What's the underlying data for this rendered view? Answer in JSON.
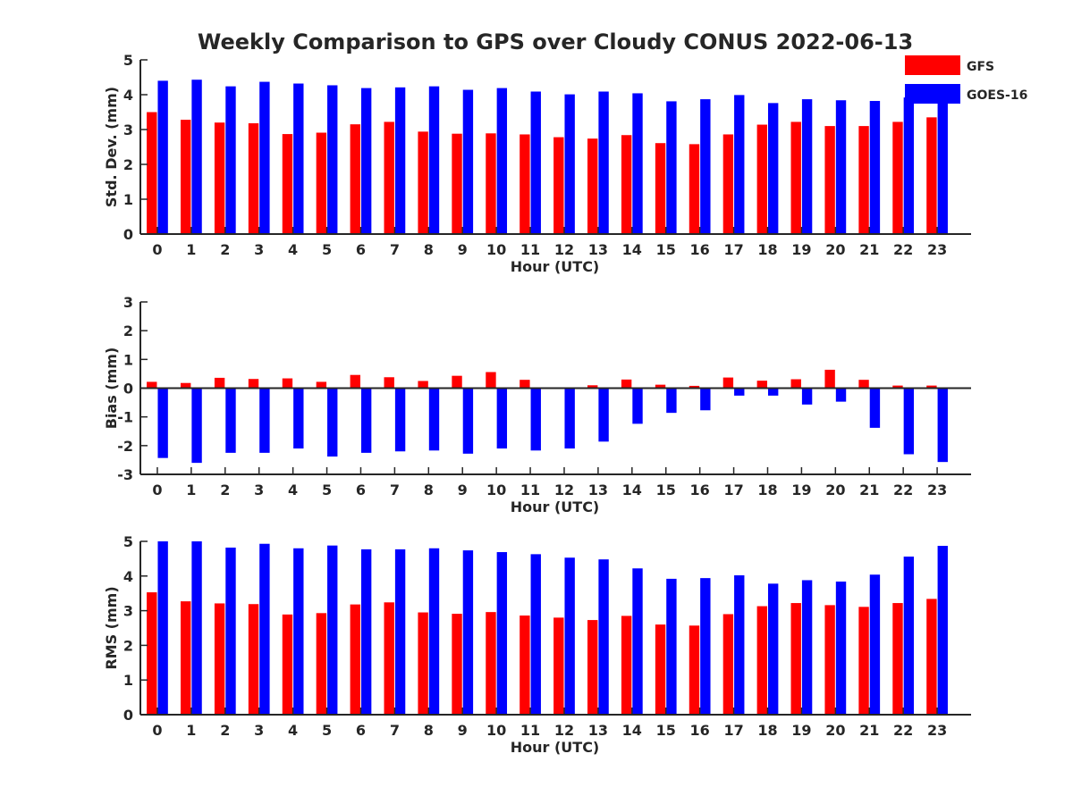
{
  "title": "Weekly Comparison to GPS over Cloudy CONUS 2022-06-13",
  "colors": {
    "gfs": "#ff0000",
    "goes": "#0000ff",
    "axis": "#262626",
    "background": "#ffffff"
  },
  "legend": {
    "placement": "top-right",
    "entries": [
      {
        "name": "GFS",
        "color": "#ff0000"
      },
      {
        "name": "GOES-16",
        "color": "#0000ff"
      }
    ]
  },
  "chart_data": [
    {
      "type": "bar",
      "ylabel": "Std. Dev. (mm)",
      "xlabel": "Hour (UTC)",
      "ylim": [
        0,
        5
      ],
      "yticks": [
        "0",
        "1",
        "2",
        "3",
        "4",
        "5"
      ],
      "categories": [
        "0",
        "1",
        "2",
        "3",
        "4",
        "5",
        "6",
        "7",
        "8",
        "9",
        "10",
        "11",
        "12",
        "13",
        "14",
        "15",
        "16",
        "17",
        "18",
        "19",
        "20",
        "21",
        "22",
        "23"
      ],
      "series": [
        {
          "name": "GFS",
          "values": [
            3.5,
            3.28,
            3.2,
            3.18,
            2.87,
            2.91,
            3.15,
            3.22,
            2.94,
            2.88,
            2.89,
            2.86,
            2.78,
            2.74,
            2.84,
            2.61,
            2.58,
            2.86,
            3.14,
            3.22,
            3.1,
            3.1,
            3.22,
            3.35
          ]
        },
        {
          "name": "GOES-16",
          "values": [
            4.4,
            4.43,
            4.24,
            4.37,
            4.32,
            4.27,
            4.19,
            4.21,
            4.24,
            4.14,
            4.19,
            4.09,
            4.01,
            4.09,
            4.04,
            3.81,
            3.87,
            3.99,
            3.76,
            3.87,
            3.84,
            3.82,
            3.92,
            3.89
          ]
        }
      ]
    },
    {
      "type": "bar",
      "ylabel": "Bias (mm)",
      "xlabel": "Hour (UTC)",
      "ylim": [
        -3,
        3
      ],
      "yticks": [
        "-3",
        "-2",
        "-1",
        "0",
        "1",
        "2",
        "3"
      ],
      "categories": [
        "0",
        "1",
        "2",
        "3",
        "4",
        "5",
        "6",
        "7",
        "8",
        "9",
        "10",
        "11",
        "12",
        "13",
        "14",
        "15",
        "16",
        "17",
        "18",
        "19",
        "20",
        "21",
        "22",
        "23"
      ],
      "series": [
        {
          "name": "GFS",
          "values": [
            0.22,
            0.18,
            0.36,
            0.32,
            0.34,
            0.22,
            0.46,
            0.38,
            0.25,
            0.43,
            0.56,
            0.29,
            0.0,
            0.1,
            0.3,
            0.12,
            0.08,
            0.37,
            0.26,
            0.31,
            0.64,
            0.29,
            0.09,
            0.09
          ]
        },
        {
          "name": "GOES-16",
          "values": [
            -2.43,
            -2.6,
            -2.25,
            -2.25,
            -2.1,
            -2.38,
            -2.25,
            -2.2,
            -2.17,
            -2.28,
            -2.1,
            -2.17,
            -2.1,
            -1.86,
            -1.24,
            -0.86,
            -0.77,
            -0.26,
            -0.26,
            -0.57,
            -0.47,
            -1.38,
            -2.3,
            -2.57
          ]
        }
      ]
    },
    {
      "type": "bar",
      "ylabel": "RMS (mm)",
      "xlabel": "Hour (UTC)",
      "ylim": [
        0,
        5
      ],
      "yticks": [
        "0",
        "1",
        "2",
        "3",
        "4",
        "5"
      ],
      "categories": [
        "0",
        "1",
        "2",
        "3",
        "4",
        "5",
        "6",
        "7",
        "8",
        "9",
        "10",
        "11",
        "12",
        "13",
        "14",
        "15",
        "16",
        "17",
        "18",
        "19",
        "20",
        "21",
        "22",
        "23"
      ],
      "series": [
        {
          "name": "GFS",
          "values": [
            3.53,
            3.27,
            3.21,
            3.19,
            2.89,
            2.93,
            3.18,
            3.24,
            2.95,
            2.91,
            2.96,
            2.86,
            2.8,
            2.73,
            2.85,
            2.6,
            2.57,
            2.9,
            3.13,
            3.22,
            3.16,
            3.11,
            3.22,
            3.34
          ]
        },
        {
          "name": "GOES-16",
          "values": [
            5.0,
            5.0,
            4.82,
            4.93,
            4.8,
            4.88,
            4.77,
            4.77,
            4.8,
            4.74,
            4.69,
            4.63,
            4.53,
            4.48,
            4.22,
            3.92,
            3.94,
            4.02,
            3.78,
            3.88,
            3.84,
            4.04,
            4.56,
            4.87
          ]
        }
      ]
    }
  ]
}
